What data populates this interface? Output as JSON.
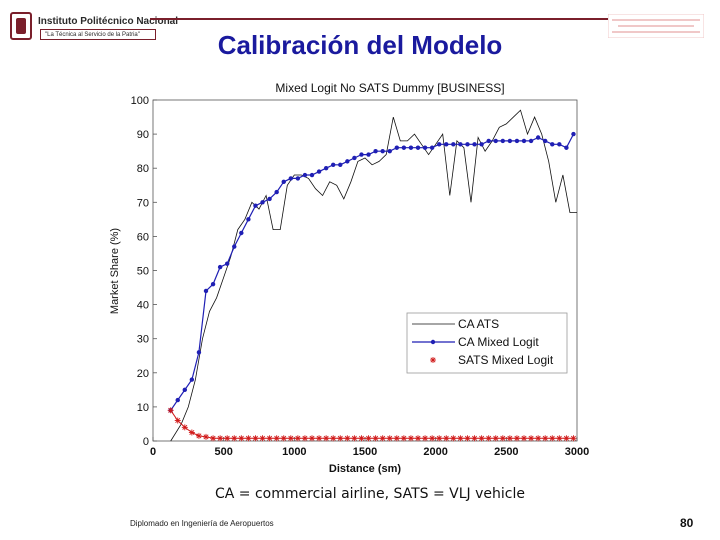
{
  "header": {
    "institution": "Instituto Politécnico Nacional",
    "motto": "\"La Técnica al Servicio de la Patria\""
  },
  "slide": {
    "title": "Calibración del Modelo",
    "caption": "CA = commercial airline, SATS = VLJ vehicle",
    "footer": "Diplomado en Ingeniería de Aeropuertos",
    "page_number": "80"
  },
  "colors": {
    "title": "#1a1a9e",
    "ca_mixed": "#1f1fb4",
    "sats_mixed": "#d01818",
    "ca_ats": "#111111",
    "brand": "#7a1f2b"
  },
  "chart_data": {
    "type": "line",
    "title": "Mixed Logit No SATS Dummy [BUSINESS]",
    "xlabel": "Distance (sm)",
    "ylabel": "Market Share (%)",
    "xlim": [
      0,
      3000
    ],
    "ylim": [
      0,
      100
    ],
    "xticks": [
      0,
      500,
      1000,
      1500,
      2000,
      2500,
      3000
    ],
    "yticks": [
      0,
      10,
      20,
      30,
      40,
      50,
      60,
      70,
      80,
      90,
      100
    ],
    "grid": false,
    "legend_position": "bottom-right",
    "series": [
      {
        "name": "CA ATS",
        "marker": "none",
        "x": [
          125,
          200,
          250,
          300,
          350,
          400,
          450,
          500,
          550,
          600,
          650,
          700,
          750,
          800,
          850,
          900,
          950,
          1000,
          1050,
          1100,
          1150,
          1200,
          1250,
          1300,
          1350,
          1400,
          1450,
          1500,
          1550,
          1600,
          1650,
          1700,
          1750,
          1800,
          1850,
          1900,
          1950,
          2000,
          2050,
          2100,
          2150,
          2200,
          2250,
          2300,
          2350,
          2400,
          2450,
          2500,
          2550,
          2600,
          2650,
          2700,
          2750,
          2800,
          2850,
          2900,
          2950,
          3000
        ],
        "y": [
          0,
          5,
          10,
          18,
          30,
          38,
          42,
          48,
          54,
          62,
          65,
          70,
          68,
          72,
          62,
          62,
          75,
          78,
          78,
          77,
          74,
          72,
          76,
          75,
          71,
          76,
          82,
          83,
          81,
          82,
          84,
          95,
          88,
          88,
          90,
          87,
          84,
          87,
          90,
          72,
          88,
          86,
          70,
          89,
          85,
          88,
          92,
          93,
          95,
          97,
          90,
          95,
          90,
          82,
          70,
          78,
          67,
          67
        ]
      },
      {
        "name": "CA Mixed Logit",
        "marker": "dot",
        "x": [
          125,
          175,
          225,
          275,
          325,
          375,
          425,
          475,
          525,
          575,
          625,
          675,
          725,
          775,
          825,
          875,
          925,
          975,
          1025,
          1075,
          1125,
          1175,
          1225,
          1275,
          1325,
          1375,
          1425,
          1475,
          1525,
          1575,
          1625,
          1675,
          1725,
          1775,
          1825,
          1875,
          1925,
          1975,
          2025,
          2075,
          2125,
          2175,
          2225,
          2275,
          2325,
          2375,
          2425,
          2475,
          2525,
          2575,
          2625,
          2675,
          2725,
          2775,
          2825,
          2875,
          2925,
          2975
        ],
        "y": [
          9,
          12,
          15,
          18,
          26,
          44,
          46,
          51,
          52,
          57,
          61,
          65,
          69,
          70,
          71,
          73,
          76,
          77,
          77,
          78,
          78,
          79,
          80,
          81,
          81,
          82,
          83,
          84,
          84,
          85,
          85,
          85,
          86,
          86,
          86,
          86,
          86,
          86,
          87,
          87,
          87,
          87,
          87,
          87,
          87,
          88,
          88,
          88,
          88,
          88,
          88,
          88,
          89,
          88,
          87,
          87,
          86,
          90
        ]
      },
      {
        "name": "SATS Mixed Logit",
        "marker": "asterisk",
        "x": [
          125,
          175,
          225,
          275,
          325,
          375,
          425,
          475,
          525,
          575,
          625,
          675,
          725,
          775,
          825,
          875,
          925,
          975,
          1025,
          1075,
          1125,
          1175,
          1225,
          1275,
          1325,
          1375,
          1425,
          1475,
          1525,
          1575,
          1625,
          1675,
          1725,
          1775,
          1825,
          1875,
          1925,
          1975,
          2025,
          2075,
          2125,
          2175,
          2225,
          2275,
          2325,
          2375,
          2425,
          2475,
          2525,
          2575,
          2625,
          2675,
          2725,
          2775,
          2825,
          2875,
          2925,
          2975
        ],
        "y": [
          9,
          6,
          4,
          2.5,
          1.5,
          1.2,
          0.8,
          0.8,
          0.8,
          0.8,
          0.8,
          0.8,
          0.8,
          0.8,
          0.8,
          0.8,
          0.8,
          0.8,
          0.8,
          0.8,
          0.8,
          0.8,
          0.8,
          0.8,
          0.8,
          0.8,
          0.8,
          0.8,
          0.8,
          0.8,
          0.8,
          0.8,
          0.8,
          0.8,
          0.8,
          0.8,
          0.8,
          0.8,
          0.8,
          0.8,
          0.8,
          0.8,
          0.8,
          0.8,
          0.8,
          0.8,
          0.8,
          0.8,
          0.8,
          0.8,
          0.8,
          0.8,
          0.8,
          0.8,
          0.8,
          0.8,
          0.8,
          0.8
        ]
      }
    ]
  }
}
